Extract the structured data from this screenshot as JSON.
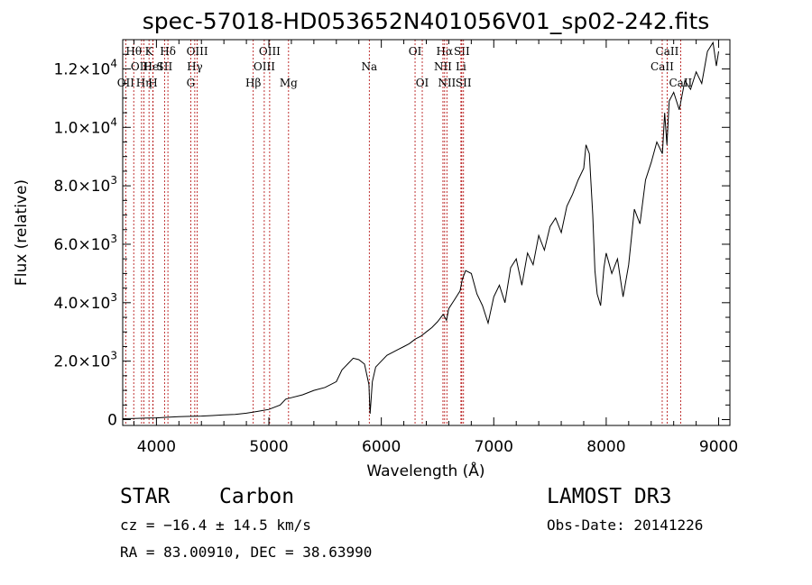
{
  "chart_data": {
    "type": "line",
    "title": "spec-57018-HD053652N401056V01_sp02-242.fits",
    "xlabel": "Wavelength (Å)",
    "ylabel": "Flux (relative)",
    "xlim": [
      3700,
      9100
    ],
    "ylim": [
      -200,
      13000
    ],
    "x_ticks": [
      4000,
      5000,
      6000,
      7000,
      8000,
      9000
    ],
    "x_tick_labels": [
      "4000",
      "5000",
      "6000",
      "7000",
      "8000",
      "9000"
    ],
    "y_ticks": [
      0,
      2000,
      4000,
      6000,
      8000,
      10000,
      12000
    ],
    "y_tick_labels": [
      {
        "mant": "0",
        "exp": ""
      },
      {
        "mant": "2.0×10",
        "exp": "3"
      },
      {
        "mant": "4.0×10",
        "exp": "3"
      },
      {
        "mant": "6.0×10",
        "exp": "3"
      },
      {
        "mant": "8.0×10",
        "exp": "3"
      },
      {
        "mant": "1.0×10",
        "exp": "4"
      },
      {
        "mant": "1.2×10",
        "exp": "4"
      }
    ],
    "spectrum_x": [
      3700,
      3800,
      3900,
      4000,
      4100,
      4200,
      4300,
      4400,
      4500,
      4600,
      4700,
      4800,
      4900,
      5000,
      5100,
      5150,
      5200,
      5300,
      5400,
      5500,
      5600,
      5650,
      5700,
      5750,
      5800,
      5850,
      5890,
      5900,
      5920,
      5950,
      6000,
      6050,
      6100,
      6150,
      6200,
      6250,
      6300,
      6350,
      6400,
      6450,
      6500,
      6550,
      6580,
      6600,
      6650,
      6700,
      6720,
      6750,
      6800,
      6850,
      6900,
      6950,
      7000,
      7050,
      7100,
      7150,
      7200,
      7250,
      7300,
      7350,
      7400,
      7450,
      7500,
      7550,
      7600,
      7650,
      7700,
      7750,
      7800,
      7820,
      7850,
      7880,
      7900,
      7920,
      7950,
      7980,
      8000,
      8050,
      8100,
      8150,
      8200,
      8250,
      8300,
      8350,
      8400,
      8450,
      8500,
      8520,
      8540,
      8560,
      8600,
      8650,
      8700,
      8750,
      8800,
      8850,
      8900,
      8950,
      8980,
      9000
    ],
    "spectrum_y": [
      30,
      40,
      50,
      60,
      80,
      100,
      110,
      120,
      140,
      160,
      180,
      220,
      280,
      350,
      500,
      700,
      750,
      850,
      1000,
      1100,
      1300,
      1700,
      1900,
      2100,
      2050,
      1900,
      1200,
      200,
      1300,
      1800,
      2000,
      2200,
      2300,
      2400,
      2500,
      2600,
      2750,
      2850,
      3000,
      3150,
      3350,
      3600,
      3400,
      3800,
      4100,
      4400,
      4800,
      5100,
      5000,
      4300,
      3900,
      3300,
      4200,
      4600,
      4000,
      5200,
      5500,
      4600,
      5700,
      5300,
      6300,
      5800,
      6600,
      6900,
      6400,
      7300,
      7700,
      8200,
      8600,
      9400,
      9100,
      7000,
      5100,
      4300,
      3900,
      5200,
      5700,
      5000,
      5500,
      4200,
      5300,
      7200,
      6700,
      8200,
      8800,
      9500,
      9100,
      10500,
      9400,
      10900,
      11200,
      10600,
      11600,
      11300,
      11900,
      11500,
      12600,
      12900,
      12100,
      12600
    ],
    "lines": [
      {
        "label": "Hθ",
        "x": 3798,
        "row": 0
      },
      {
        "label": "OII",
        "x": 3727,
        "row": 2
      },
      {
        "label": "OIII",
        "x": 3868,
        "row": 1
      },
      {
        "label": "Hη",
        "x": 3889,
        "row": 2
      },
      {
        "label": "K",
        "x": 3934,
        "row": 0
      },
      {
        "label": "HeI",
        "x": 3970,
        "row": 1
      },
      {
        "label": "H",
        "x": 3969,
        "row": 2
      },
      {
        "label": "SII",
        "x": 4072,
        "row": 1
      },
      {
        "label": "Hδ",
        "x": 4102,
        "row": 0
      },
      {
        "label": "OIII",
        "x": 4363,
        "row": 0
      },
      {
        "label": "Hγ",
        "x": 4341,
        "row": 1
      },
      {
        "label": "G",
        "x": 4305,
        "row": 2
      },
      {
        "label": "Hβ",
        "x": 4861,
        "row": 2
      },
      {
        "label": "OIII",
        "x": 5007,
        "row": 0
      },
      {
        "label": "OIII",
        "x": 4959,
        "row": 1
      },
      {
        "label": "Mg",
        "x": 5175,
        "row": 2
      },
      {
        "label": "Na",
        "x": 5893,
        "row": 1
      },
      {
        "label": "OI",
        "x": 6300,
        "row": 0
      },
      {
        "label": "OI",
        "x": 6364,
        "row": 2
      },
      {
        "label": "Hα",
        "x": 6563,
        "row": 0
      },
      {
        "label": "NII",
        "x": 6548,
        "row": 1
      },
      {
        "label": "NII",
        "x": 6583,
        "row": 2
      },
      {
        "label": "SII",
        "x": 6716,
        "row": 0
      },
      {
        "label": "Li",
        "x": 6708,
        "row": 1
      },
      {
        "label": "SII",
        "x": 6731,
        "row": 2
      },
      {
        "label": "CaII",
        "x": 8542,
        "row": 0
      },
      {
        "label": "CaII",
        "x": 8498,
        "row": 1
      },
      {
        "label": "CaII",
        "x": 8662,
        "row": 2
      }
    ]
  },
  "info": {
    "object_type": "STAR",
    "subclass": "Carbon",
    "survey": "LAMOST DR3",
    "redshift": "cz = −16.4 ± 14.5 km/s",
    "obs_date": "Obs-Date: 20141226",
    "coords": "RA =  83.00910, DEC =  38.63990"
  },
  "colors": {
    "spectrum": "#000000",
    "line_markers": "#b00000",
    "background": "#ffffff"
  }
}
